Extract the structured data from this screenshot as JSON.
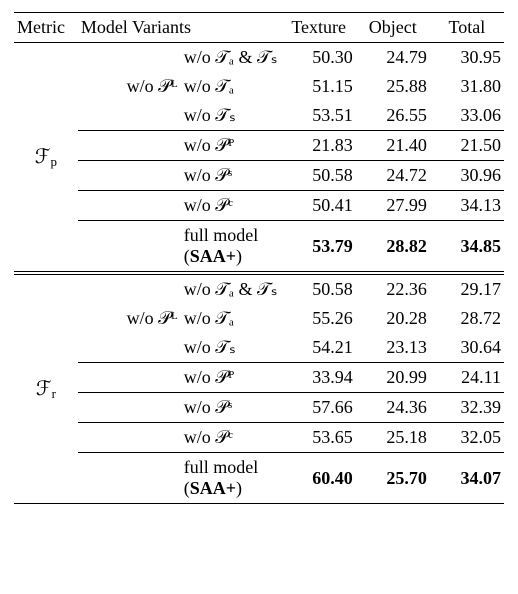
{
  "colors": {
    "text": "#000000",
    "background": "#ffffff",
    "rule": "#000000"
  },
  "typography": {
    "font_family": "Times New Roman",
    "base_fontsize_pt": 14,
    "bold_weight": 700
  },
  "table": {
    "columns": [
      "Metric",
      "Model Variants",
      "Texture",
      "Object",
      "Total"
    ],
    "col_roles": [
      "left",
      "left",
      "right",
      "right",
      "right"
    ],
    "blocks": [
      {
        "metric_label_html": "ℱ<sub>p</sub>",
        "metric_label_plain": "F_p",
        "rows": [
          {
            "variant_lead": "",
            "variant_tail": "w/o 𝒯ₐ & 𝒯ₛ",
            "texture": "50.30",
            "object": "24.79",
            "total": "30.95",
            "sep_after": false
          },
          {
            "variant_lead": "w/o 𝒫ᴸ",
            "variant_tail": "w/o 𝒯ₐ",
            "texture": "51.15",
            "object": "25.88",
            "total": "31.80",
            "sep_after": false
          },
          {
            "variant_lead": "",
            "variant_tail": "w/o 𝒯ₛ",
            "texture": "53.51",
            "object": "26.55",
            "total": "33.06",
            "sep_after": true
          },
          {
            "variant_lead": "",
            "variant_tail": "w/o 𝒫ᴾ",
            "texture": "21.83",
            "object": "21.40",
            "total": "21.50",
            "sep_after": true
          },
          {
            "variant_lead": "",
            "variant_tail": "w/o 𝒫ˢ",
            "texture": "50.58",
            "object": "24.72",
            "total": "30.96",
            "sep_after": true
          },
          {
            "variant_lead": "",
            "variant_tail": "w/o 𝒫ᶜ",
            "texture": "50.41",
            "object": "27.99",
            "total": "34.13",
            "sep_after": true
          }
        ],
        "full_row": {
          "label": "full model (SAA+)",
          "texture": "53.79",
          "object": "28.82",
          "total": "34.85"
        }
      },
      {
        "metric_label_html": "ℱ<sub>r</sub>",
        "metric_label_plain": "F_r",
        "rows": [
          {
            "variant_lead": "",
            "variant_tail": "w/o 𝒯ₐ & 𝒯ₛ",
            "texture": "50.58",
            "object": "22.36",
            "total": "29.17",
            "sep_after": false
          },
          {
            "variant_lead": "w/o 𝒫ᴸ",
            "variant_tail": "w/o 𝒯ₐ",
            "texture": "55.26",
            "object": "20.28",
            "total": "28.72",
            "sep_after": false
          },
          {
            "variant_lead": "",
            "variant_tail": "w/o 𝒯ₛ",
            "texture": "54.21",
            "object": "23.13",
            "total": "30.64",
            "sep_after": true
          },
          {
            "variant_lead": "",
            "variant_tail": "w/o 𝒫ᴾ",
            "texture": "33.94",
            "object": "20.99",
            "total": "24.11",
            "sep_after": true
          },
          {
            "variant_lead": "",
            "variant_tail": "w/o 𝒫ˢ",
            "texture": "57.66",
            "object": "24.36",
            "total": "32.39",
            "sep_after": true
          },
          {
            "variant_lead": "",
            "variant_tail": "w/o 𝒫ᶜ",
            "texture": "53.65",
            "object": "25.18",
            "total": "32.05",
            "sep_after": true
          }
        ],
        "full_row": {
          "label": "full model (SAA+)",
          "texture": "60.40",
          "object": "25.70",
          "total": "34.07"
        }
      }
    ]
  }
}
